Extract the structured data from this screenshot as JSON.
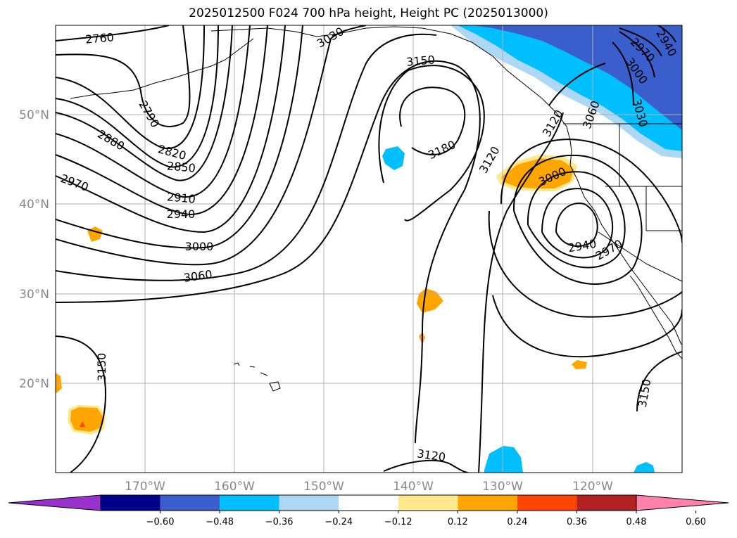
{
  "title": "2025012500 F024 700 hPa height, Height PC (2025013000)",
  "map": {
    "lat_labels": [
      "50°N",
      "40°N",
      "30°N",
      "20°N"
    ],
    "lon_labels": [
      "170°W",
      "160°W",
      "150°W",
      "140°W",
      "130°W",
      "120°W"
    ],
    "extent": {
      "lon_min": -180,
      "lon_max": -110,
      "lat_min": 10,
      "lat_max": 60
    },
    "gridlines": true,
    "contour_labels": [
      "2760",
      "2790",
      "2820",
      "2850",
      "2880",
      "2910",
      "2940",
      "2970",
      "3000",
      "3030",
      "3060",
      "3120",
      "3150",
      "3180",
      "3000",
      "2940",
      "2970",
      "3150",
      "3120",
      "2970",
      "3000",
      "3030",
      "3060",
      "2940",
      "3120",
      "3150"
    ]
  },
  "colorbar": {
    "tick_labels": [
      "−0.60",
      "−0.48",
      "−0.36",
      "−0.24",
      "−0.12",
      "0.12",
      "0.24",
      "0.36",
      "0.48",
      "0.60"
    ],
    "colors": [
      "#9932cc",
      "#00008b",
      "#3a5fcd",
      "#00bfff",
      "#add8f5",
      "#ffffff",
      "#ffe98c",
      "#ffa500",
      "#ff4500",
      "#b22222",
      "#ff82ab"
    ]
  }
}
